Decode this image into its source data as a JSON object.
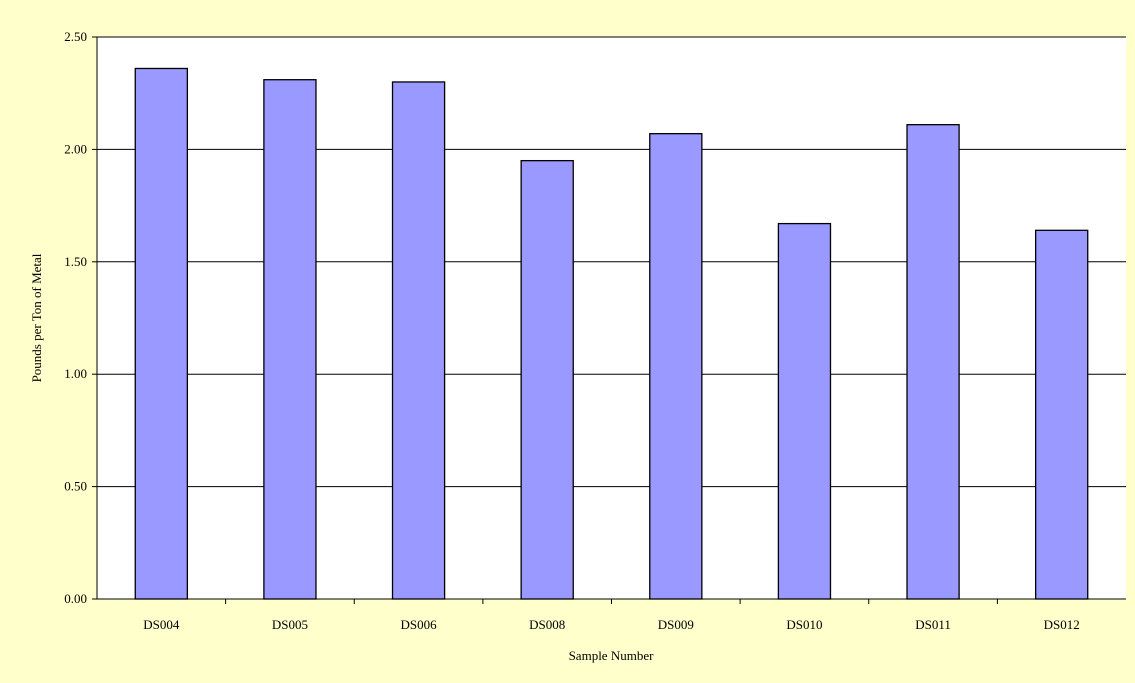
{
  "colors": {
    "background": "#ffffcc",
    "plot_area": "#ffffff",
    "bar_fill": "#9999ff",
    "bar_stroke": "#000000",
    "gridline": "#000000"
  },
  "chart_data": {
    "type": "bar",
    "title": "",
    "xlabel": "Sample Number",
    "ylabel": "Pounds per Ton of Metal",
    "categories": [
      "DS004",
      "DS005",
      "DS006",
      "DS008",
      "DS009",
      "DS010",
      "DS011",
      "DS012"
    ],
    "values": [
      2.36,
      2.31,
      2.3,
      1.95,
      2.07,
      1.67,
      2.11,
      1.64
    ],
    "ylim": [
      0,
      2.5
    ],
    "yticks": [
      0,
      0.5,
      1.0,
      1.5,
      2.0,
      2.5
    ],
    "ytick_labels": [
      "0.00",
      "0.50",
      "1.00",
      "1.50",
      "2.00",
      "2.50"
    ],
    "grid": true,
    "legend": "none"
  }
}
